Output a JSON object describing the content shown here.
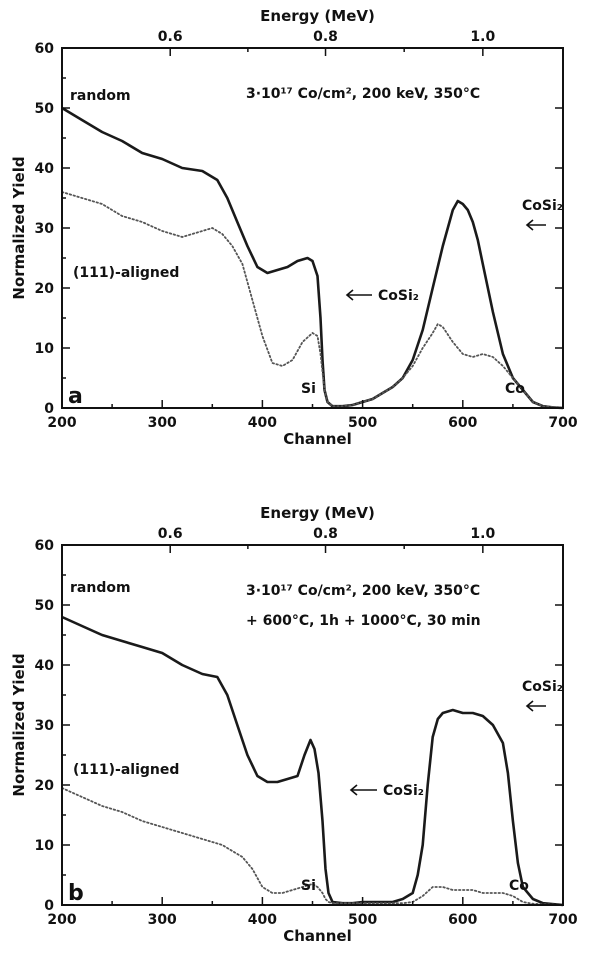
{
  "chart_data": [
    {
      "type": "line",
      "panel_label": "a",
      "xlabel": "Channel",
      "ylabel": "Normalized Yield",
      "x2label": "Energy (MeV)",
      "xlim": [
        200,
        700
      ],
      "ylim": [
        0,
        60
      ],
      "xticks": [
        "200",
        "300",
        "400",
        "500",
        "600",
        "700"
      ],
      "yticks": [
        "0",
        "10",
        "20",
        "30",
        "40",
        "50",
        "60"
      ],
      "top_ticks": [
        {
          "label": "0.6",
          "channel": 308
        },
        {
          "label": "0.8",
          "channel": 463
        },
        {
          "label": "1.0",
          "channel": 620
        }
      ],
      "conditions": [
        "3·10¹⁷ Co/cm², 200 keV, 350°C"
      ],
      "annotations": {
        "random": "random",
        "aligned": "(111)-aligned",
        "cosi2_mid": "CoSi₂",
        "cosi2_right": "CoSi₂",
        "si": "Si",
        "co": "Co"
      },
      "series": [
        {
          "name": "random",
          "x": [
            200,
            220,
            240,
            260,
            280,
            300,
            320,
            340,
            355,
            365,
            375,
            385,
            395,
            405,
            415,
            425,
            435,
            445,
            450,
            455,
            458,
            460,
            462,
            465,
            470,
            480,
            490,
            500,
            510,
            520,
            530,
            540,
            550,
            560,
            570,
            580,
            585,
            590,
            595,
            600,
            605,
            610,
            615,
            620,
            630,
            640,
            650,
            655,
            660,
            665,
            670,
            680,
            690,
            700
          ],
          "y": [
            50,
            48,
            46,
            44.5,
            42.5,
            41.5,
            40,
            39.5,
            38,
            35,
            31,
            27,
            23.5,
            22.5,
            23,
            23.5,
            24.5,
            25,
            24.5,
            22,
            15,
            8,
            3,
            1,
            0.3,
            0.3,
            0.5,
            1,
            1.5,
            2.5,
            3.5,
            5,
            8,
            13,
            20,
            27,
            30,
            33,
            34.5,
            34,
            33,
            31,
            28,
            24,
            16,
            9,
            5,
            4,
            3,
            2,
            1,
            0.3,
            0.1,
            0
          ]
        },
        {
          "name": "(111)-aligned",
          "x": [
            200,
            220,
            240,
            260,
            280,
            300,
            320,
            340,
            350,
            360,
            370,
            380,
            390,
            400,
            410,
            420,
            430,
            440,
            450,
            455,
            458,
            460,
            462,
            465,
            470,
            480,
            490,
            500,
            510,
            520,
            530,
            540,
            550,
            560,
            570,
            575,
            580,
            590,
            600,
            610,
            620,
            630,
            640,
            650,
            655,
            660,
            665,
            670,
            680,
            700
          ],
          "y": [
            36,
            35,
            34,
            32,
            31,
            29.5,
            28.5,
            29.5,
            30,
            29,
            27,
            24,
            18,
            12,
            7.5,
            7,
            8,
            11,
            12.5,
            12,
            9,
            6,
            3,
            1,
            0.3,
            0.3,
            0.5,
            1,
            1.5,
            2.5,
            3.5,
            5,
            7,
            10,
            12.5,
            14,
            13.5,
            11,
            9,
            8.5,
            9,
            8.5,
            7,
            5,
            4,
            3,
            2,
            1,
            0.3,
            0
          ]
        }
      ]
    },
    {
      "type": "line",
      "panel_label": "b",
      "xlabel": "Channel",
      "ylabel": "Normalized Yield",
      "x2label": "Energy (MeV)",
      "xlim": [
        200,
        700
      ],
      "ylim": [
        0,
        60
      ],
      "xticks": [
        "200",
        "300",
        "400",
        "500",
        "600",
        "700"
      ],
      "yticks": [
        "0",
        "10",
        "20",
        "30",
        "40",
        "50",
        "60"
      ],
      "top_ticks": [
        {
          "label": "0.6",
          "channel": 308
        },
        {
          "label": "0.8",
          "channel": 463
        },
        {
          "label": "1.0",
          "channel": 620
        }
      ],
      "conditions": [
        "3·10¹⁷ Co/cm², 200 keV, 350°C",
        "+ 600°C, 1h   + 1000°C, 30 min"
      ],
      "annotations": {
        "random": "random",
        "aligned": "(111)-aligned",
        "cosi2_mid": "CoSi₂",
        "cosi2_right": "CoSi₂",
        "si": "Si",
        "co": "Co"
      },
      "series": [
        {
          "name": "random",
          "x": [
            200,
            220,
            240,
            260,
            280,
            300,
            320,
            340,
            355,
            365,
            375,
            385,
            395,
            405,
            415,
            425,
            435,
            442,
            448,
            452,
            456,
            460,
            463,
            466,
            470,
            480,
            490,
            500,
            510,
            520,
            530,
            540,
            550,
            555,
            560,
            565,
            570,
            575,
            580,
            590,
            600,
            610,
            620,
            630,
            640,
            645,
            650,
            655,
            660,
            670,
            680,
            700
          ],
          "y": [
            48,
            46.5,
            45,
            44,
            43,
            42,
            40,
            38.5,
            38,
            35,
            30,
            25,
            21.5,
            20.5,
            20.5,
            21,
            21.5,
            25,
            27.5,
            26,
            22,
            14,
            6,
            2,
            0.5,
            0.3,
            0.3,
            0.5,
            0.5,
            0.5,
            0.5,
            1,
            2,
            5,
            10,
            20,
            28,
            31,
            32,
            32.5,
            32,
            32,
            31.5,
            30,
            27,
            22,
            14,
            7,
            3,
            1,
            0.3,
            0
          ]
        },
        {
          "name": "(111)-aligned",
          "x": [
            200,
            220,
            240,
            260,
            280,
            300,
            320,
            340,
            360,
            370,
            380,
            390,
            400,
            410,
            420,
            430,
            440,
            450,
            455,
            460,
            463,
            466,
            470,
            480,
            490,
            500,
            510,
            520,
            530,
            540,
            550,
            560,
            570,
            580,
            590,
            600,
            610,
            620,
            630,
            640,
            650,
            655,
            660,
            670,
            700
          ],
          "y": [
            19.5,
            18,
            16.5,
            15.5,
            14,
            13,
            12,
            11,
            10,
            9,
            8,
            6,
            3,
            2,
            2,
            2.5,
            3,
            3.5,
            3,
            2,
            1,
            0.5,
            0.3,
            0.3,
            0.3,
            0.3,
            0.3,
            0.3,
            0.3,
            0.3,
            0.5,
            1.5,
            3,
            3,
            2.5,
            2.5,
            2.5,
            2,
            2,
            2,
            1.5,
            1,
            0.5,
            0.2,
            0
          ]
        }
      ]
    }
  ]
}
